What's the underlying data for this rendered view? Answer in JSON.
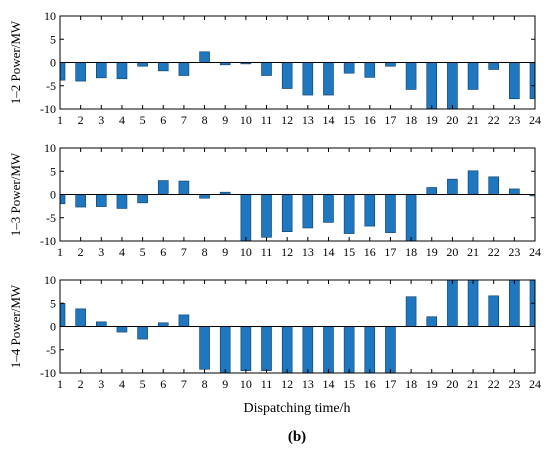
{
  "bar_color": "#1f77c0",
  "x_axis_label": "Dispatching time/h",
  "caption": "(b)",
  "chart_data": [
    {
      "type": "bar",
      "ylabel": "1–2 Power/MW",
      "ylim": [
        -10,
        10
      ],
      "yticks": [
        -10,
        -5,
        0,
        5,
        10
      ],
      "x": [
        1,
        2,
        3,
        4,
        5,
        6,
        7,
        8,
        9,
        10,
        11,
        12,
        13,
        14,
        15,
        16,
        17,
        18,
        19,
        20,
        21,
        22,
        23,
        24
      ],
      "xticks": [
        "1",
        "2",
        "3",
        "4",
        "5",
        "6",
        "7",
        "8",
        "9",
        "10",
        "11",
        "12",
        "13",
        "14",
        "15",
        "16",
        "17",
        "18",
        "19",
        "20",
        "21",
        "22",
        "23",
        "24"
      ],
      "values": [
        -3.8,
        -4.0,
        -3.3,
        -3.5,
        -0.8,
        -1.8,
        -2.8,
        2.3,
        -0.5,
        -0.3,
        -2.8,
        -5.6,
        -7.0,
        -7.0,
        -2.3,
        -3.2,
        -0.8,
        -5.8,
        -10,
        -10,
        -5.8,
        -1.5,
        -7.8,
        -7.8
      ],
      "grid": false
    },
    {
      "type": "bar",
      "ylabel": "1–3 Power/MW",
      "ylim": [
        -10,
        10
      ],
      "yticks": [
        -10,
        -5,
        0,
        5,
        10
      ],
      "x": [
        1,
        2,
        3,
        4,
        5,
        6,
        7,
        8,
        9,
        10,
        11,
        12,
        13,
        14,
        15,
        16,
        17,
        18,
        19,
        20,
        21,
        22,
        23,
        24
      ],
      "xticks": [
        "1",
        "2",
        "3",
        "4",
        "5",
        "6",
        "7",
        "8",
        "9",
        "10",
        "11",
        "12",
        "13",
        "14",
        "15",
        "16",
        "17",
        "18",
        "19",
        "20",
        "21",
        "22",
        "23",
        "24"
      ],
      "values": [
        -2.0,
        -2.7,
        -2.6,
        -3.0,
        -1.8,
        3.0,
        2.9,
        -0.8,
        0.5,
        -10,
        -9.2,
        -8.0,
        -7.2,
        -6.0,
        -8.4,
        -6.8,
        -8.2,
        -10,
        1.5,
        3.3,
        5.1,
        3.8,
        1.2,
        -0.3
      ],
      "grid": false
    },
    {
      "type": "bar",
      "ylabel": "1–4 Power/MW",
      "ylim": [
        -10,
        10
      ],
      "yticks": [
        -10,
        -5,
        0,
        5,
        10
      ],
      "x": [
        1,
        2,
        3,
        4,
        5,
        6,
        7,
        8,
        9,
        10,
        11,
        12,
        13,
        14,
        15,
        16,
        17,
        18,
        19,
        20,
        21,
        22,
        23,
        24
      ],
      "xticks": [
        "1",
        "2",
        "3",
        "4",
        "5",
        "6",
        "7",
        "8",
        "9",
        "10",
        "11",
        "12",
        "13",
        "14",
        "15",
        "16",
        "17",
        "18",
        "19",
        "20",
        "21",
        "22",
        "23",
        "24"
      ],
      "values": [
        5.0,
        3.8,
        1.0,
        -1.2,
        -2.7,
        0.8,
        2.5,
        -9.2,
        -10,
        -9.5,
        -9.5,
        -10,
        -10,
        -10,
        -10,
        -10,
        -10,
        6.4,
        2.1,
        10,
        10,
        6.6,
        10,
        10
      ],
      "grid": false
    }
  ]
}
